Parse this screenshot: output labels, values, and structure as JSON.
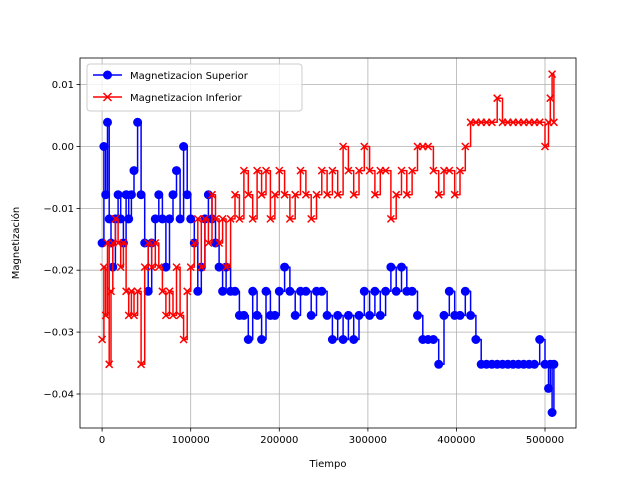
{
  "chart_data": {
    "type": "line",
    "title": "",
    "xlabel": "Tiempo",
    "ylabel": "Magnetización",
    "xlim": [
      -25000,
      535000
    ],
    "ylim": [
      -0.0455,
      0.0143
    ],
    "xticks": [
      0,
      100000,
      200000,
      300000,
      400000,
      500000
    ],
    "xtick_labels": [
      "0",
      "100000",
      "200000",
      "300000",
      "400000",
      "500000"
    ],
    "yticks": [
      0.01,
      0.0,
      -0.01,
      -0.02,
      -0.03,
      -0.04
    ],
    "ytick_labels": [
      "0.01",
      "0.00",
      "−0.01",
      "−0.02",
      "−0.03",
      "−0.04"
    ],
    "grid": true,
    "legend_location": "upper left",
    "series": [
      {
        "name": "Magnetizacion Superior",
        "color": "#0000ff",
        "marker": "circle",
        "x": [
          0,
          2000,
          4000,
          6000,
          8000,
          10000,
          12000,
          15000,
          18000,
          21000,
          24000,
          27000,
          30000,
          33000,
          36000,
          40000,
          44000,
          48000,
          52000,
          56000,
          60000,
          64000,
          68000,
          72000,
          76000,
          80000,
          84000,
          88000,
          92000,
          96000,
          100000,
          104000,
          108000,
          112000,
          116000,
          120000,
          124000,
          128000,
          132000,
          136000,
          140000,
          145000,
          150000,
          155000,
          160000,
          165000,
          170000,
          175000,
          180000,
          185000,
          190000,
          195000,
          200000,
          206000,
          212000,
          218000,
          224000,
          230000,
          236000,
          242000,
          248000,
          254000,
          260000,
          266000,
          272000,
          278000,
          284000,
          290000,
          296000,
          302000,
          308000,
          314000,
          320000,
          326000,
          332000,
          338000,
          344000,
          350000,
          356000,
          362000,
          368000,
          374000,
          380000,
          386000,
          392000,
          398000,
          404000,
          410000,
          416000,
          422000,
          428000,
          434000,
          440000,
          446000,
          452000,
          458000,
          464000,
          470000,
          476000,
          482000,
          488000,
          494000,
          500000,
          504000,
          506000,
          508000,
          510000
        ],
        "y": [
          -0.0156,
          0.0,
          -0.0078,
          0.0039,
          -0.0117,
          -0.0156,
          -0.0195,
          -0.0117,
          -0.0078,
          -0.0117,
          -0.0156,
          -0.0078,
          -0.0117,
          -0.0078,
          -0.0039,
          0.0039,
          -0.0078,
          -0.0156,
          -0.0234,
          -0.0156,
          -0.0117,
          -0.0078,
          -0.0117,
          -0.0195,
          -0.0117,
          -0.0078,
          -0.0039,
          -0.0117,
          0.0,
          -0.0078,
          -0.0117,
          -0.0156,
          -0.0234,
          -0.0195,
          -0.0117,
          -0.0078,
          -0.0117,
          -0.0156,
          -0.0195,
          -0.0234,
          -0.0195,
          -0.0234,
          -0.0234,
          -0.0273,
          -0.0273,
          -0.0312,
          -0.0234,
          -0.0273,
          -0.0312,
          -0.0234,
          -0.0273,
          -0.0273,
          -0.0234,
          -0.0195,
          -0.0234,
          -0.0273,
          -0.0234,
          -0.0234,
          -0.0273,
          -0.0234,
          -0.0234,
          -0.0273,
          -0.0312,
          -0.0273,
          -0.0312,
          -0.0273,
          -0.0312,
          -0.0273,
          -0.0234,
          -0.0273,
          -0.0234,
          -0.0273,
          -0.0234,
          -0.0195,
          -0.0234,
          -0.0195,
          -0.0234,
          -0.0234,
          -0.0273,
          -0.0312,
          -0.0312,
          -0.0312,
          -0.0352,
          -0.0273,
          -0.0234,
          -0.0273,
          -0.0273,
          -0.0234,
          -0.0273,
          -0.0312,
          -0.0352,
          -0.0352,
          -0.0352,
          -0.0352,
          -0.0352,
          -0.0352,
          -0.0352,
          -0.0352,
          -0.0352,
          -0.0352,
          -0.0352,
          -0.0312,
          -0.0352,
          -0.0391,
          -0.0352,
          -0.043,
          -0.0352
        ]
      },
      {
        "name": "Magnetizacion Inferior",
        "color": "#ff0000",
        "marker": "x",
        "x": [
          0,
          2000,
          4000,
          6000,
          8000,
          10000,
          12000,
          15000,
          18000,
          21000,
          24000,
          27000,
          30000,
          33000,
          36000,
          40000,
          44000,
          48000,
          52000,
          56000,
          60000,
          64000,
          68000,
          72000,
          76000,
          80000,
          84000,
          88000,
          92000,
          96000,
          100000,
          104000,
          108000,
          112000,
          116000,
          120000,
          124000,
          128000,
          132000,
          136000,
          140000,
          145000,
          150000,
          155000,
          160000,
          165000,
          170000,
          175000,
          180000,
          185000,
          190000,
          195000,
          200000,
          206000,
          212000,
          218000,
          224000,
          230000,
          236000,
          242000,
          248000,
          254000,
          260000,
          266000,
          272000,
          278000,
          284000,
          290000,
          296000,
          302000,
          308000,
          314000,
          320000,
          326000,
          332000,
          338000,
          344000,
          350000,
          356000,
          362000,
          368000,
          374000,
          380000,
          386000,
          392000,
          398000,
          404000,
          410000,
          416000,
          422000,
          428000,
          434000,
          440000,
          446000,
          452000,
          458000,
          464000,
          470000,
          476000,
          482000,
          488000,
          494000,
          500000,
          504000,
          506000,
          508000,
          510000
        ],
        "y": [
          -0.0312,
          -0.0195,
          -0.0273,
          -0.0156,
          -0.0352,
          -0.0234,
          -0.0156,
          -0.0117,
          -0.0156,
          -0.0195,
          -0.0156,
          -0.0234,
          -0.0273,
          -0.0234,
          -0.0273,
          -0.0234,
          -0.0352,
          -0.0195,
          -0.0156,
          -0.0195,
          -0.0156,
          -0.0195,
          -0.0234,
          -0.0273,
          -0.0234,
          -0.0273,
          -0.0195,
          -0.0273,
          -0.0312,
          -0.0234,
          -0.0195,
          -0.0156,
          -0.0117,
          -0.0195,
          -0.0117,
          -0.0156,
          -0.0078,
          -0.0117,
          -0.0156,
          -0.0117,
          -0.0195,
          -0.0117,
          -0.0078,
          -0.0117,
          -0.0039,
          -0.0078,
          -0.0117,
          -0.0039,
          -0.0078,
          -0.0039,
          -0.0117,
          -0.0078,
          -0.0039,
          -0.0078,
          -0.0117,
          -0.0078,
          -0.0039,
          -0.0078,
          -0.0117,
          -0.0078,
          -0.0039,
          -0.0078,
          -0.0039,
          -0.0078,
          0.0,
          -0.0039,
          -0.0078,
          -0.0039,
          0.0,
          -0.0039,
          -0.0078,
          -0.0039,
          -0.0039,
          -0.0117,
          -0.0078,
          -0.0039,
          -0.0078,
          -0.0039,
          0.0,
          0.0,
          0.0,
          -0.0039,
          -0.0078,
          -0.0039,
          -0.0039,
          -0.0078,
          -0.0039,
          0.0,
          0.0039,
          0.0039,
          0.0039,
          0.0039,
          0.0039,
          0.0078,
          0.0039,
          0.0039,
          0.0039,
          0.0039,
          0.0039,
          0.0039,
          0.0039,
          0.0039,
          0.0,
          0.0039,
          0.0078,
          0.0117,
          0.0039
        ]
      }
    ]
  }
}
